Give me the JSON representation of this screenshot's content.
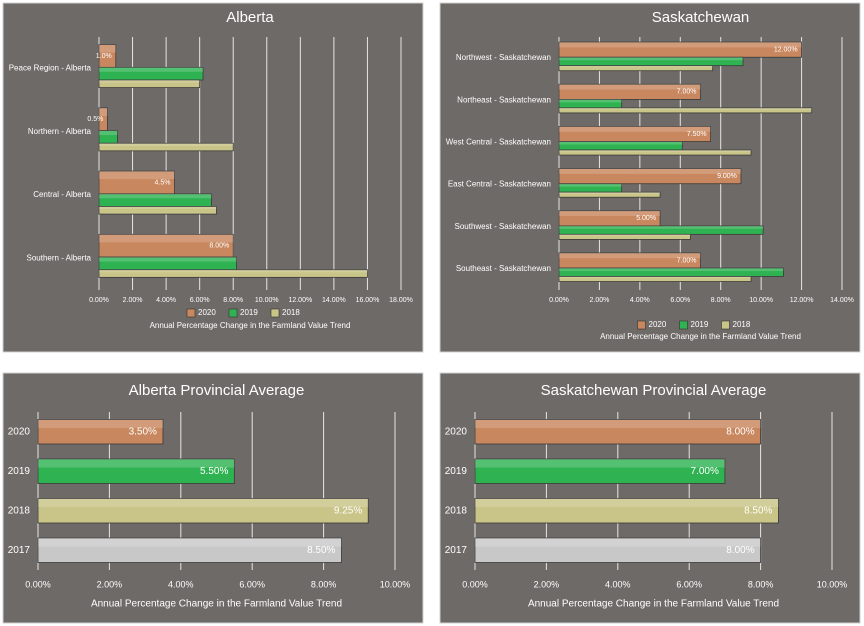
{
  "chart_data": [
    {
      "type": "barh",
      "title": "Alberta",
      "categories": [
        "Peace Region - Alberta",
        "Northern - Alberta",
        "Central - Alberta",
        "Southern - Alberta"
      ],
      "series": [
        {
          "name": "2020",
          "color": "#c8875e",
          "values": [
            1.0,
            0.5,
            4.5,
            8.0
          ],
          "value_labels": [
            "1.0%",
            "0.5%",
            "4.5%",
            "8.00%"
          ]
        },
        {
          "name": "2019",
          "color": "#2fb352",
          "values": [
            6.2,
            1.1,
            6.7,
            8.2
          ]
        },
        {
          "name": "2018",
          "color": "#c9c487",
          "values": [
            6.0,
            8.0,
            7.0,
            16.0
          ]
        }
      ],
      "xlim": [
        0,
        18
      ],
      "xticks": [
        {
          "value": 0,
          "label": "0.00%"
        },
        {
          "value": 2,
          "label": "2.00%"
        },
        {
          "value": 4,
          "label": "4.00%"
        },
        {
          "value": 6,
          "label": "6.00%"
        },
        {
          "value": 8,
          "label": "8.00%"
        },
        {
          "value": 10,
          "label": "10.00%"
        },
        {
          "value": 12,
          "label": "12.00%"
        },
        {
          "value": 14,
          "label": "14.00%"
        },
        {
          "value": 16,
          "label": "16.00%"
        },
        {
          "value": 18,
          "label": "18.00%"
        }
      ],
      "xlabel": "Annual Percentage Change in the Farmland Value Trend",
      "grid": true,
      "legend": "bottom"
    },
    {
      "type": "barh",
      "title": "Saskatchewan",
      "categories": [
        "Northwest - Saskatchewan",
        "Northeast - Saskatchewan",
        "West Central - Saskatchewan",
        "East Central - Saskatchewan",
        "Southwest - Saskatchewan",
        "Southeast - Saskatchewan"
      ],
      "series": [
        {
          "name": "2020",
          "color": "#c8875e",
          "values": [
            12.0,
            7.0,
            7.5,
            9.0,
            5.0,
            7.0
          ],
          "value_labels": [
            "12.00%",
            "7.00%",
            "7.50%",
            "9.00%",
            "5.00%",
            "7.00%"
          ]
        },
        {
          "name": "2019",
          "color": "#2fb352",
          "values": [
            9.1,
            3.1,
            6.1,
            3.1,
            10.1,
            11.1
          ]
        },
        {
          "name": "2018",
          "color": "#c9c487",
          "values": [
            7.6,
            12.5,
            9.5,
            5.0,
            6.5,
            9.5
          ]
        }
      ],
      "xlim": [
        0,
        14
      ],
      "xticks": [
        {
          "value": 0,
          "label": "0.00%"
        },
        {
          "value": 2,
          "label": "2.00%"
        },
        {
          "value": 4,
          "label": "4.00%"
        },
        {
          "value": 6,
          "label": "6.00%"
        },
        {
          "value": 8,
          "label": "8.00%"
        },
        {
          "value": 10,
          "label": "10.00%"
        },
        {
          "value": 12,
          "label": "12.00%"
        },
        {
          "value": 14,
          "label": "14.00%"
        }
      ],
      "xlabel": "Annual Percentage Change in the Farmland Value Trend",
      "grid": true,
      "legend": "bottom"
    },
    {
      "type": "barh",
      "title": "Alberta Provincial Average",
      "categories": [
        "2020",
        "2019",
        "2018",
        "2017"
      ],
      "values": [
        3.5,
        5.5,
        9.25,
        8.5
      ],
      "value_labels": [
        "3.50%",
        "5.50%",
        "9.25%",
        "8.50%"
      ],
      "colors": [
        "#c8875e",
        "#2fb352",
        "#c9c487",
        "#c8c8c8"
      ],
      "xlim": [
        0,
        10
      ],
      "xticks": [
        {
          "value": 0,
          "label": "0.00%"
        },
        {
          "value": 2,
          "label": "2.00%"
        },
        {
          "value": 4,
          "label": "4.00%"
        },
        {
          "value": 6,
          "label": "6.00%"
        },
        {
          "value": 8,
          "label": "8.00%"
        },
        {
          "value": 10,
          "label": "10.00%"
        }
      ],
      "xlabel": "Annual Percentage Change in the Farmland Value Trend",
      "grid": true
    },
    {
      "type": "barh",
      "title": "Saskatchewan Provincial Average",
      "categories": [
        "2020",
        "2019",
        "2018",
        "2017"
      ],
      "values": [
        8.0,
        7.0,
        8.5,
        8.0
      ],
      "value_labels": [
        "8.00%",
        "7.00%",
        "8.50%",
        "8.00%"
      ],
      "colors": [
        "#c8875e",
        "#2fb352",
        "#c9c487",
        "#c8c8c8"
      ],
      "xlim": [
        0,
        10
      ],
      "xticks": [
        {
          "value": 0,
          "label": "0.00%"
        },
        {
          "value": 2,
          "label": "2.00%"
        },
        {
          "value": 4,
          "label": "4.00%"
        },
        {
          "value": 6,
          "label": "6.00%"
        },
        {
          "value": 8,
          "label": "8.00%"
        },
        {
          "value": 10,
          "label": "10.00%"
        }
      ],
      "xlabel": "Annual Percentage Change in the Farmland Value Trend",
      "grid": true
    }
  ]
}
